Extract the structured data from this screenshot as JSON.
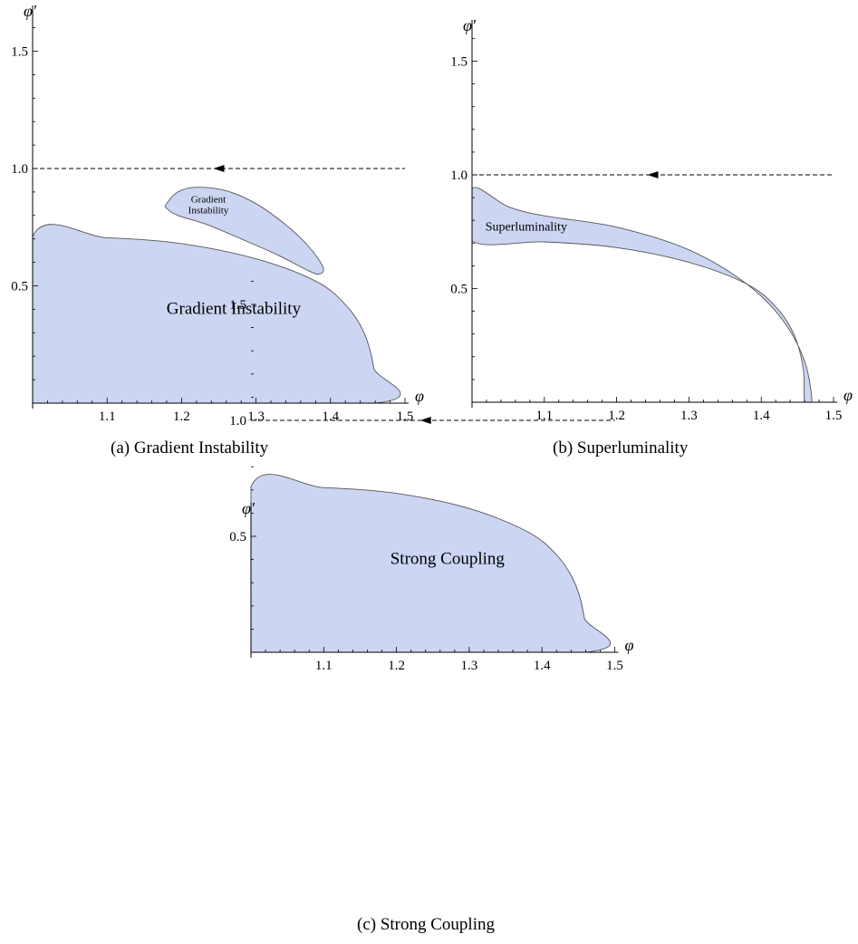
{
  "chart_data": [
    {
      "id": "a",
      "type": "area",
      "caption": "(a) Gradient Instability",
      "xlabel": "φ",
      "ylabel": "φ′",
      "xlim": [
        1.0,
        1.5
      ],
      "ylim": [
        0.0,
        1.65
      ],
      "xticks": [
        "1.1",
        "1.2",
        "1.3",
        "1.4",
        "1.5"
      ],
      "yticks": [
        "0.5",
        "1.0",
        "1.5"
      ],
      "fill_color": "#ccd5f2",
      "edge_color": "#555555",
      "trajectory": {
        "y": 1.0,
        "x": [
          1.0,
          1.5
        ],
        "arrow_at": 1.25,
        "direction": "left"
      },
      "regions": [
        {
          "label": "Gradient Instability",
          "label_at": [
            1.27,
            0.38
          ],
          "label_size": 19,
          "points": [
            [
              1.0,
              0.0
            ],
            [
              1.0,
              0.71
            ],
            [
              1.1,
              0.705
            ],
            [
              1.2,
              0.68
            ],
            [
              1.3,
              0.615
            ],
            [
              1.38,
              0.52
            ],
            [
              1.42,
              0.42
            ],
            [
              1.445,
              0.3
            ],
            [
              1.458,
              0.15
            ],
            [
              1.46,
              0.0
            ]
          ]
        },
        {
          "label": "Gradient Instability",
          "label_lines": [
            "Gradient",
            "Instability"
          ],
          "label_at": [
            1.236,
            0.855
          ],
          "label_size": 11,
          "points": [
            [
              1.18,
              0.85
            ],
            [
              1.195,
              0.9
            ],
            [
              1.22,
              0.92
            ],
            [
              1.26,
              0.905
            ],
            [
              1.3,
              0.85
            ],
            [
              1.34,
              0.76
            ],
            [
              1.37,
              0.67
            ],
            [
              1.39,
              0.58
            ],
            [
              1.385,
              0.55
            ],
            [
              1.37,
              0.565
            ],
            [
              1.33,
              0.63
            ],
            [
              1.28,
              0.7
            ],
            [
              1.235,
              0.76
            ],
            [
              1.195,
              0.8
            ],
            [
              1.18,
              0.83
            ]
          ]
        }
      ]
    },
    {
      "id": "b",
      "type": "area",
      "caption": "(b) Superluminality",
      "xlabel": "φ",
      "ylabel": "φ′",
      "xlim": [
        1.0,
        1.5
      ],
      "ylim": [
        0.0,
        1.65
      ],
      "xticks": [
        "1.1",
        "1.2",
        "1.3",
        "1.4",
        "1.5"
      ],
      "yticks": [
        "0.5",
        "1.0",
        "1.5"
      ],
      "fill_color": "#ccd5f2",
      "edge_color": "#555555",
      "trajectory": {
        "y": 1.0,
        "x": [
          1.0,
          1.5
        ],
        "arrow_at": 1.25,
        "direction": "left"
      },
      "regions": [
        {
          "label": "Superluminality",
          "label_at": [
            1.075,
            0.755
          ],
          "label_size": 14,
          "points": [
            [
              1.0,
              0.94
            ],
            [
              1.05,
              0.86
            ],
            [
              1.1,
              0.82
            ],
            [
              1.2,
              0.77
            ],
            [
              1.3,
              0.67
            ],
            [
              1.38,
              0.52
            ],
            [
              1.43,
              0.36
            ],
            [
              1.46,
              0.18
            ],
            [
              1.47,
              0.0
            ],
            [
              1.46,
              0.0
            ],
            [
              1.458,
              0.15
            ],
            [
              1.445,
              0.3
            ],
            [
              1.42,
              0.42
            ],
            [
              1.38,
              0.52
            ],
            [
              1.3,
              0.615
            ],
            [
              1.2,
              0.68
            ],
            [
              1.1,
              0.705
            ],
            [
              1.0,
              0.71
            ]
          ]
        }
      ]
    },
    {
      "id": "c",
      "type": "area",
      "caption": "(c) Strong Coupling",
      "xlabel": "φ",
      "ylabel": "φ′",
      "xlim": [
        1.0,
        1.5
      ],
      "ylim": [
        0.0,
        1.65
      ],
      "xticks": [
        "1.1",
        "1.2",
        "1.3",
        "1.4",
        "1.5"
      ],
      "yticks": [
        "0.5",
        "1.0",
        "1.5"
      ],
      "fill_color": "#ccd5f2",
      "edge_color": "#555555",
      "trajectory": {
        "y": 1.0,
        "x": [
          1.0,
          1.5
        ],
        "arrow_at": 1.24,
        "direction": "left"
      },
      "regions": [
        {
          "label": "Strong Coupling",
          "label_at": [
            1.27,
            0.38
          ],
          "label_size": 19,
          "points": [
            [
              1.0,
              0.0
            ],
            [
              1.0,
              0.715
            ],
            [
              1.1,
              0.71
            ],
            [
              1.2,
              0.685
            ],
            [
              1.3,
              0.62
            ],
            [
              1.38,
              0.52
            ],
            [
              1.42,
              0.42
            ],
            [
              1.445,
              0.3
            ],
            [
              1.458,
              0.15
            ],
            [
              1.46,
              0.0
            ]
          ]
        }
      ]
    }
  ]
}
